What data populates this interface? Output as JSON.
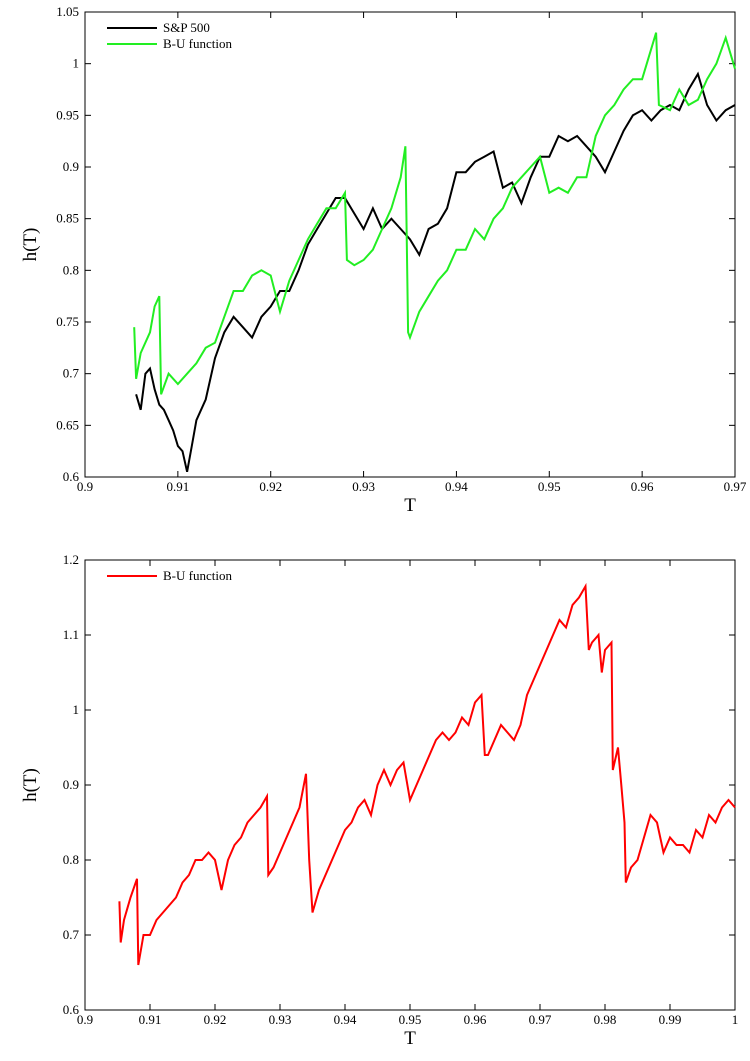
{
  "chart_data": [
    {
      "type": "line",
      "xlabel": "T",
      "ylabel": "h(T)",
      "legend": "upper left",
      "xlim": [
        0.9,
        0.97
      ],
      "xticks": [
        0.9,
        0.91,
        0.92,
        0.93,
        0.94,
        0.95,
        0.96,
        0.97
      ],
      "ylim": [
        0.6,
        1.05
      ],
      "yticks": [
        0.6,
        0.65,
        0.7,
        0.75,
        0.8,
        0.85,
        0.9,
        0.95,
        1,
        1.05
      ],
      "series": [
        {
          "name": "S&P 500",
          "color": "#000000",
          "x": [
            0.9055,
            0.906,
            0.9065,
            0.907,
            0.9075,
            0.908,
            0.9085,
            0.909,
            0.9095,
            0.91,
            0.9105,
            0.911,
            0.9115,
            0.912,
            0.913,
            0.914,
            0.915,
            0.916,
            0.917,
            0.918,
            0.919,
            0.92,
            0.921,
            0.922,
            0.923,
            0.924,
            0.925,
            0.926,
            0.927,
            0.928,
            0.929,
            0.93,
            0.931,
            0.932,
            0.933,
            0.934,
            0.935,
            0.936,
            0.937,
            0.938,
            0.939,
            0.94,
            0.941,
            0.942,
            0.943,
            0.944,
            0.945,
            0.946,
            0.947,
            0.948,
            0.949,
            0.95,
            0.951,
            0.952,
            0.953,
            0.954,
            0.955,
            0.956,
            0.957,
            0.958,
            0.959,
            0.96,
            0.961,
            0.962,
            0.963,
            0.964,
            0.965,
            0.966,
            0.967,
            0.968,
            0.969,
            0.97
          ],
          "values": [
            0.68,
            0.665,
            0.7,
            0.705,
            0.685,
            0.67,
            0.665,
            0.655,
            0.645,
            0.63,
            0.625,
            0.605,
            0.63,
            0.655,
            0.675,
            0.715,
            0.74,
            0.755,
            0.745,
            0.735,
            0.755,
            0.765,
            0.78,
            0.78,
            0.8,
            0.825,
            0.84,
            0.855,
            0.87,
            0.87,
            0.855,
            0.84,
            0.86,
            0.84,
            0.85,
            0.84,
            0.83,
            0.815,
            0.84,
            0.845,
            0.86,
            0.895,
            0.895,
            0.905,
            0.91,
            0.915,
            0.88,
            0.885,
            0.865,
            0.89,
            0.91,
            0.91,
            0.93,
            0.925,
            0.93,
            0.92,
            0.91,
            0.895,
            0.915,
            0.935,
            0.95,
            0.955,
            0.945,
            0.955,
            0.96,
            0.955,
            0.975,
            0.99,
            0.96,
            0.945,
            0.955,
            0.96
          ]
        },
        {
          "name": "B-U function",
          "color": "#22ee22",
          "x": [
            0.9053,
            0.9055,
            0.906,
            0.907,
            0.9075,
            0.908,
            0.9082,
            0.909,
            0.91,
            0.911,
            0.912,
            0.913,
            0.914,
            0.915,
            0.916,
            0.917,
            0.918,
            0.919,
            0.92,
            0.921,
            0.922,
            0.923,
            0.924,
            0.925,
            0.926,
            0.927,
            0.928,
            0.9282,
            0.929,
            0.93,
            0.931,
            0.932,
            0.933,
            0.934,
            0.9345,
            0.9348,
            0.935,
            0.936,
            0.937,
            0.938,
            0.939,
            0.94,
            0.941,
            0.942,
            0.943,
            0.944,
            0.945,
            0.946,
            0.947,
            0.948,
            0.949,
            0.95,
            0.951,
            0.952,
            0.953,
            0.954,
            0.955,
            0.956,
            0.957,
            0.958,
            0.959,
            0.96,
            0.9615,
            0.9618,
            0.963,
            0.964,
            0.965,
            0.966,
            0.967,
            0.968,
            0.969,
            0.97
          ],
          "values": [
            0.745,
            0.695,
            0.72,
            0.74,
            0.765,
            0.775,
            0.68,
            0.7,
            0.69,
            0.7,
            0.71,
            0.725,
            0.73,
            0.755,
            0.78,
            0.78,
            0.795,
            0.8,
            0.795,
            0.76,
            0.79,
            0.81,
            0.83,
            0.845,
            0.86,
            0.86,
            0.875,
            0.81,
            0.805,
            0.81,
            0.82,
            0.84,
            0.86,
            0.89,
            0.92,
            0.74,
            0.735,
            0.76,
            0.775,
            0.79,
            0.8,
            0.82,
            0.82,
            0.84,
            0.83,
            0.85,
            0.86,
            0.88,
            0.89,
            0.9,
            0.91,
            0.875,
            0.88,
            0.875,
            0.89,
            0.89,
            0.93,
            0.95,
            0.96,
            0.975,
            0.985,
            0.985,
            1.03,
            0.96,
            0.955,
            0.975,
            0.96,
            0.965,
            0.985,
            1.0,
            1.025,
            0.995
          ]
        }
      ]
    },
    {
      "type": "line",
      "xlabel": "T",
      "ylabel": "h(T)",
      "legend": "upper left",
      "xlim": [
        0.9,
        1
      ],
      "xticks": [
        0.9,
        0.91,
        0.92,
        0.93,
        0.94,
        0.95,
        0.96,
        0.97,
        0.98,
        0.99,
        1
      ],
      "ylim": [
        0.6,
        1.2
      ],
      "yticks": [
        0.6,
        0.7,
        0.8,
        0.9,
        1,
        1.1,
        1.2
      ],
      "series": [
        {
          "name": "B-U function",
          "color": "#ff0000",
          "x": [
            0.9053,
            0.9055,
            0.906,
            0.907,
            0.908,
            0.9082,
            0.909,
            0.91,
            0.911,
            0.912,
            0.913,
            0.914,
            0.915,
            0.916,
            0.917,
            0.918,
            0.919,
            0.92,
            0.921,
            0.922,
            0.923,
            0.924,
            0.925,
            0.926,
            0.927,
            0.928,
            0.9282,
            0.929,
            0.93,
            0.931,
            0.932,
            0.933,
            0.934,
            0.9345,
            0.935,
            0.936,
            0.937,
            0.938,
            0.939,
            0.94,
            0.941,
            0.942,
            0.943,
            0.944,
            0.945,
            0.946,
            0.947,
            0.948,
            0.949,
            0.95,
            0.951,
            0.952,
            0.953,
            0.954,
            0.955,
            0.956,
            0.957,
            0.958,
            0.959,
            0.96,
            0.961,
            0.9615,
            0.962,
            0.963,
            0.964,
            0.965,
            0.966,
            0.967,
            0.968,
            0.969,
            0.97,
            0.971,
            0.972,
            0.973,
            0.974,
            0.975,
            0.976,
            0.977,
            0.9775,
            0.978,
            0.979,
            0.9795,
            0.98,
            0.981,
            0.9812,
            0.982,
            0.9825,
            0.983,
            0.9832,
            0.984,
            0.985,
            0.986,
            0.987,
            0.988,
            0.989,
            0.99,
            0.991,
            0.992,
            0.993,
            0.994,
            0.995,
            0.996,
            0.997,
            0.998,
            0.999,
            1
          ],
          "values": [
            0.745,
            0.69,
            0.72,
            0.75,
            0.775,
            0.66,
            0.7,
            0.7,
            0.72,
            0.73,
            0.74,
            0.75,
            0.77,
            0.78,
            0.8,
            0.8,
            0.81,
            0.8,
            0.76,
            0.8,
            0.82,
            0.83,
            0.85,
            0.86,
            0.87,
            0.885,
            0.78,
            0.79,
            0.81,
            0.83,
            0.85,
            0.87,
            0.915,
            0.8,
            0.73,
            0.76,
            0.78,
            0.8,
            0.82,
            0.84,
            0.85,
            0.87,
            0.88,
            0.86,
            0.9,
            0.92,
            0.9,
            0.92,
            0.93,
            0.88,
            0.9,
            0.92,
            0.94,
            0.96,
            0.97,
            0.96,
            0.97,
            0.99,
            0.98,
            1.01,
            1.02,
            0.94,
            0.94,
            0.96,
            0.98,
            0.97,
            0.96,
            0.98,
            1.02,
            1.04,
            1.06,
            1.08,
            1.1,
            1.12,
            1.11,
            1.14,
            1.15,
            1.165,
            1.08,
            1.09,
            1.1,
            1.05,
            1.08,
            1.09,
            0.92,
            0.95,
            0.9,
            0.85,
            0.77,
            0.79,
            0.8,
            0.83,
            0.86,
            0.85,
            0.81,
            0.83,
            0.82,
            0.82,
            0.81,
            0.84,
            0.83,
            0.86,
            0.85,
            0.87,
            0.88,
            0.87
          ]
        }
      ]
    }
  ]
}
